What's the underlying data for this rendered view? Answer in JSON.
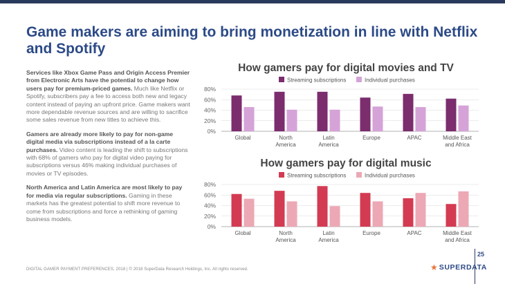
{
  "slide": {
    "title": "Game makers are aiming to bring monetization in line with Netflix and Spotify",
    "page_number": "25",
    "footer": "DIGITAL GAMER PAYMENT PREFERENCES, 2018 | © 2018 SuperData Research Holdings, Inc. All rights reserved.",
    "brand": "SUPERDATA",
    "colors": {
      "title": "#2c4a86",
      "accent_bar": "#2a3a5c",
      "logo_star": "#e8743b"
    }
  },
  "body": {
    "p1_lead": "Services like Xbox Game Pass and Origin Access Premier from Electronic Arts have the potential to change how users pay for premium-priced games.",
    "p1_rest": " Much like Netflix or Spotify, subscribers pay a fee to access both new and legacy content instead of paying an upfront price. Game makers want more dependable revenue sources and are willing to sacrifice some sales revenue from new titles to achieve this.",
    "p2_lead": "Gamers are already more likely to pay for non-game digital media via subscriptions instead of a la carte purchases.",
    "p2_rest": " Video content is leading the shift to subscriptions with 68% of gamers who pay for digital video paying for subscriptions versus 46% making individual purchases of movies or TV episodes.",
    "p3_lead": "North America and Latin America are most likely to pay for media via regular subscriptions.",
    "p3_rest": " Gaming in these markets has the greatest potential to shift more revenue to come from subscriptions and force a rethinking of gaming business models."
  },
  "chart_data": [
    {
      "type": "bar",
      "title": "How gamers pay for digital movies and TV",
      "categories": [
        [
          "Global"
        ],
        [
          "North",
          "America"
        ],
        [
          "Latin",
          "America"
        ],
        [
          "Europe"
        ],
        [
          "APAC"
        ],
        [
          "Middle East",
          "and Africa"
        ]
      ],
      "series": [
        {
          "name": "Streaming subscriptions",
          "color": "#7b2d6e",
          "values": [
            68,
            75,
            75,
            64,
            71,
            62
          ]
        },
        {
          "name": "Individual purchases",
          "color": "#d5a3d7",
          "values": [
            46,
            41,
            41,
            47,
            46,
            49
          ]
        }
      ],
      "ylim": [
        0,
        80
      ],
      "yticks": [
        "0%",
        "20%",
        "40%",
        "60%",
        "80%"
      ],
      "grid": true,
      "legend_position": "top"
    },
    {
      "type": "bar",
      "title": "How gamers pay for digital music",
      "categories": [
        [
          "Global"
        ],
        [
          "North",
          "America"
        ],
        [
          "Latin",
          "America"
        ],
        [
          "Europe"
        ],
        [
          "APAC"
        ],
        [
          "Middle East",
          "and Africa"
        ]
      ],
      "series": [
        {
          "name": "Streaming subscriptions",
          "color": "#d33b52",
          "values": [
            62,
            68,
            77,
            64,
            54,
            43
          ]
        },
        {
          "name": "Individual purchases",
          "color": "#eca8b5",
          "values": [
            53,
            48,
            39,
            48,
            64,
            67
          ]
        }
      ],
      "ylim": [
        0,
        80
      ],
      "yticks": [
        "0%",
        "20%",
        "40%",
        "60%",
        "80%"
      ],
      "grid": true,
      "legend_position": "top"
    }
  ]
}
